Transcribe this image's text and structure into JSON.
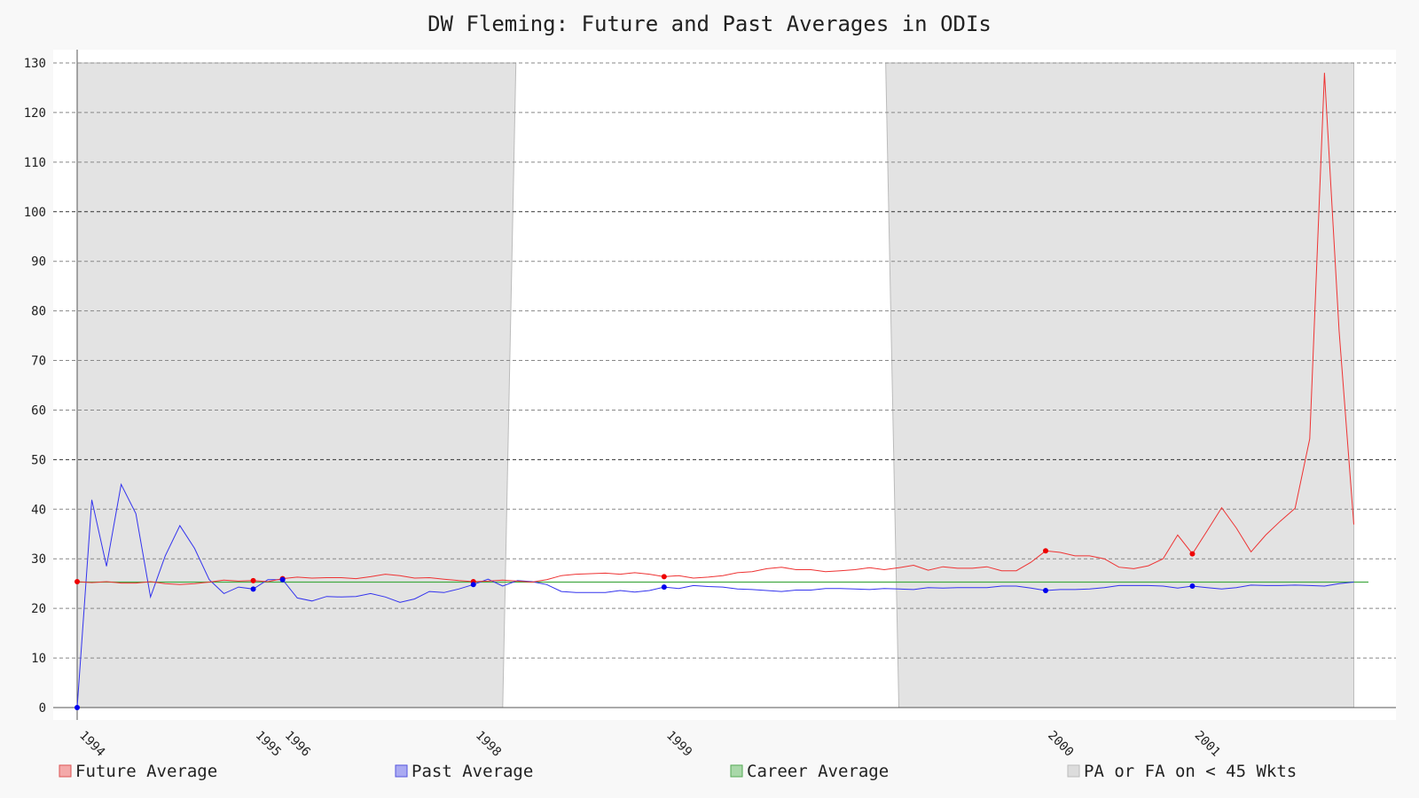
{
  "chart_data": {
    "type": "line",
    "title": "DW Fleming: Future and Past Averages in ODIs",
    "xlabel": "",
    "ylabel": "",
    "ylim": [
      0,
      130
    ],
    "yticks": [
      0,
      10,
      20,
      30,
      40,
      50,
      60,
      70,
      80,
      90,
      100,
      110,
      120,
      130
    ],
    "grid": true,
    "legend_position": "bottom",
    "match_index_range": [
      0,
      88
    ],
    "x_year_ticks": [
      {
        "label": "1994",
        "match": 0
      },
      {
        "label": "1995",
        "match": 12
      },
      {
        "label": "1996",
        "match": 14
      },
      {
        "label": "1998",
        "match": 27
      },
      {
        "label": "1999",
        "match": 40
      },
      {
        "label": "2000",
        "match": 66
      },
      {
        "label": "2001",
        "match": 76
      }
    ],
    "series": [
      {
        "name": "Future Average",
        "color": "#ee3333",
        "values": [
          25.4,
          25.2,
          25.4,
          25.1,
          25.1,
          25.4,
          25.0,
          24.8,
          25.0,
          25.3,
          25.7,
          25.5,
          25.6,
          25.4,
          26.0,
          26.3,
          26.1,
          26.2,
          26.2,
          26.0,
          26.4,
          26.9,
          26.6,
          26.1,
          26.2,
          25.9,
          25.6,
          25.4,
          25.5,
          25.7,
          25.5,
          25.3,
          25.8,
          26.6,
          26.9,
          27.0,
          27.1,
          26.9,
          27.2,
          26.9,
          26.4,
          26.6,
          26.1,
          26.3,
          26.6,
          27.2,
          27.4,
          28.0,
          28.3,
          27.8,
          27.8,
          27.4,
          27.6,
          27.8,
          28.2,
          27.8,
          28.2,
          28.7,
          27.7,
          28.4,
          28.1,
          28.1,
          28.4,
          27.6,
          27.6,
          29.3,
          31.6,
          31.3,
          30.6,
          30.6,
          30.0,
          28.3,
          28.0,
          28.6,
          30.0,
          34.8,
          31.0,
          35.6,
          40.3,
          36.2,
          31.4,
          34.8,
          37.6,
          40.2,
          54.2,
          128.0,
          76.0,
          36.9
        ],
        "highlighted": [
          0,
          12,
          14,
          27,
          40,
          66,
          76
        ]
      },
      {
        "name": "Past Average",
        "color": "#3333ee",
        "values": [
          0.0,
          41.9,
          28.5,
          45.0,
          39.1,
          22.3,
          30.6,
          36.7,
          32.1,
          25.8,
          23.0,
          24.3,
          23.9,
          25.8,
          25.8,
          22.1,
          21.5,
          22.4,
          22.3,
          22.4,
          23.0,
          22.3,
          21.2,
          21.9,
          23.4,
          23.2,
          23.9,
          24.8,
          25.9,
          24.5,
          25.6,
          25.4,
          24.8,
          23.4,
          23.2,
          23.2,
          23.2,
          23.6,
          23.3,
          23.6,
          24.3,
          24.0,
          24.6,
          24.4,
          24.3,
          23.9,
          23.8,
          23.6,
          23.4,
          23.7,
          23.7,
          24.0,
          24.0,
          23.9,
          23.8,
          24.0,
          23.9,
          23.8,
          24.2,
          24.1,
          24.2,
          24.2,
          24.2,
          24.5,
          24.5,
          24.1,
          23.6,
          23.8,
          23.8,
          23.9,
          24.2,
          24.6,
          24.6,
          24.6,
          24.5,
          24.1,
          24.5,
          24.2,
          23.9,
          24.2,
          24.7,
          24.6,
          24.6,
          24.7,
          24.6,
          24.5,
          25.0,
          25.3
        ],
        "highlighted": [
          0,
          12,
          14,
          27,
          40,
          66,
          76
        ]
      },
      {
        "name": "Career Average",
        "color": "#44aa44",
        "constant": 25.3
      },
      {
        "name": "PA or FA on < 45 Wkts",
        "color": "#d9d9d9",
        "shaded_ranges": [
          [
            0,
            29
          ],
          [
            56,
            87
          ]
        ]
      }
    ]
  },
  "legend": [
    {
      "label": "Future Average",
      "fill": "#f4a9a9",
      "stroke": "#dd5555"
    },
    {
      "label": "Past Average",
      "fill": "#aaaaf2",
      "stroke": "#5555dd"
    },
    {
      "label": "Career Average",
      "fill": "#a9d8a9",
      "stroke": "#55aa55"
    },
    {
      "label": "PA or FA on < 45 Wkts",
      "fill": "#dcdcdc",
      "stroke": "#bbbbbb"
    }
  ]
}
